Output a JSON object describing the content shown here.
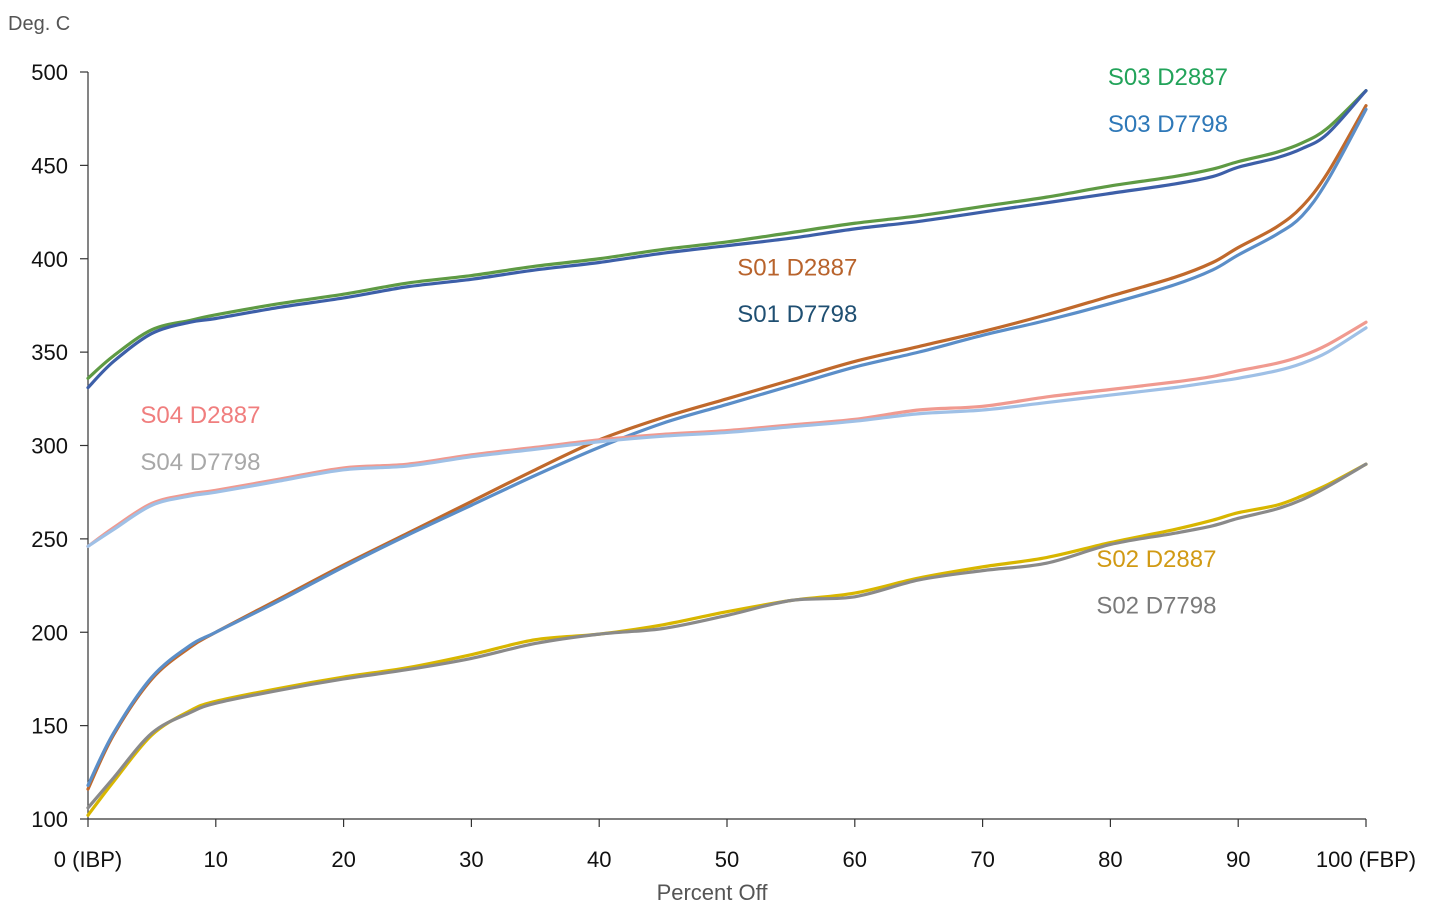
{
  "chart_data": {
    "type": "line",
    "title": "",
    "xlabel": "Percent Off",
    "ylabel": "Deg. C",
    "xlim": [
      0,
      100
    ],
    "ylim": [
      100,
      500
    ],
    "grid": false,
    "x_ticks": [
      0,
      10,
      20,
      30,
      40,
      50,
      60,
      70,
      80,
      90,
      100
    ],
    "x_tick_labels": [
      "0 (IBP)",
      "10",
      "20",
      "30",
      "40",
      "50",
      "60",
      "70",
      "80",
      "90",
      "100 (FBP)"
    ],
    "y_ticks": [
      100,
      150,
      200,
      250,
      300,
      350,
      400,
      450,
      500
    ],
    "x": [
      0,
      2,
      5,
      8,
      10,
      15,
      20,
      25,
      30,
      35,
      40,
      45,
      50,
      55,
      60,
      65,
      70,
      75,
      80,
      85,
      88,
      90,
      93,
      95,
      97,
      100
    ],
    "series": [
      {
        "name": "S03 D2887",
        "color": "#5e9a44",
        "values": [
          336,
          348,
          362,
          367,
          370,
          376,
          381,
          387,
          391,
          396,
          400,
          405,
          409,
          414,
          419,
          423,
          428,
          433,
          439,
          444,
          448,
          452,
          457,
          462,
          470,
          490
        ]
      },
      {
        "name": "S03 D7798",
        "color": "#3d5fa8",
        "values": [
          331,
          345,
          360,
          366,
          368,
          374,
          379,
          385,
          389,
          394,
          398,
          403,
          407,
          411,
          416,
          420,
          425,
          430,
          435,
          440,
          444,
          449,
          454,
          459,
          467,
          490
        ]
      },
      {
        "name": "S01 D2887",
        "color": "#c0692c",
        "values": [
          116,
          145,
          175,
          192,
          200,
          218,
          236,
          253,
          270,
          287,
          303,
          315,
          325,
          335,
          345,
          353,
          361,
          370,
          380,
          390,
          398,
          406,
          417,
          428,
          446,
          482
        ]
      },
      {
        "name": "S01 D7798",
        "color": "#5b8ec8",
        "values": [
          118,
          146,
          176,
          193,
          200,
          217,
          235,
          252,
          268,
          284,
          299,
          312,
          322,
          332,
          342,
          350,
          359,
          367,
          376,
          386,
          394,
          402,
          413,
          423,
          442,
          480
        ]
      },
      {
        "name": "S04 D2887",
        "color": "#f09a90",
        "values": [
          246,
          256,
          269,
          274,
          276,
          282,
          288,
          290,
          295,
          299,
          303,
          306,
          308,
          311,
          314,
          319,
          321,
          326,
          330,
          334,
          337,
          340,
          344,
          348,
          354,
          366
        ]
      },
      {
        "name": "S04 D7798",
        "color": "#9fc0e6",
        "values": [
          246,
          255,
          268,
          273,
          275,
          281,
          287,
          289,
          294,
          298,
          302,
          305,
          307,
          310,
          313,
          317,
          319,
          323,
          327,
          331,
          334,
          336,
          340,
          344,
          350,
          363
        ]
      },
      {
        "name": "S02 D2887",
        "color": "#d8b600",
        "values": [
          102,
          120,
          145,
          158,
          163,
          170,
          176,
          181,
          188,
          196,
          199,
          204,
          211,
          217,
          221,
          229,
          235,
          240,
          248,
          255,
          260,
          264,
          268,
          273,
          279,
          290
        ]
      },
      {
        "name": "S02 D7798",
        "color": "#8a8a8a",
        "values": [
          106,
          122,
          146,
          157,
          162,
          169,
          175,
          180,
          186,
          194,
          199,
          202,
          209,
          217,
          219,
          228,
          233,
          237,
          247,
          253,
          257,
          261,
          266,
          271,
          278,
          290
        ]
      }
    ],
    "labels": [
      {
        "text": "S03 D2887",
        "color": "#22a35a",
        "x": 79.8,
        "y": 493
      },
      {
        "text": "S03 D7798",
        "color": "#2e78b8",
        "x": 79.8,
        "y": 468
      },
      {
        "text": "S01 D2887",
        "color": "#b8632c",
        "x": 50.8,
        "y": 391
      },
      {
        "text": "S01 D7798",
        "color": "#1f4f72",
        "x": 50.8,
        "y": 366
      },
      {
        "text": "S04 D2887",
        "color": "#f07e7e",
        "x": 4.1,
        "y": 312
      },
      {
        "text": "S04 D7798",
        "color": "#a8a8a8",
        "x": 4.1,
        "y": 287
      },
      {
        "text": "S02 D2887",
        "color": "#d19a14",
        "x": 78.9,
        "y": 235
      },
      {
        "text": "S02 D7798",
        "color": "#7a7a7a",
        "x": 78.9,
        "y": 210
      }
    ]
  }
}
